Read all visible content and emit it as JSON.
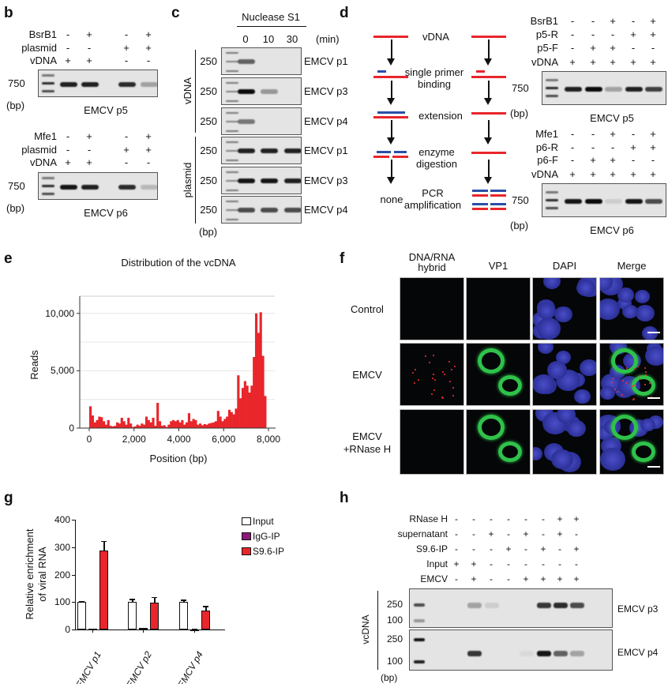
{
  "panel_labels": {
    "b": "b",
    "c": "c",
    "d": "d",
    "e": "e",
    "f": "f",
    "g": "g",
    "h": "h"
  },
  "panel_b": {
    "gels": [
      {
        "rows": [
          {
            "name": "BsrB1",
            "values": [
              "-",
              "+",
              "-",
              "+"
            ]
          },
          {
            "name": "plasmid",
            "values": [
              "-",
              "-",
              "+",
              "+"
            ]
          },
          {
            "name": "vDNA",
            "values": [
              "+",
              "+",
              "-",
              "-"
            ]
          }
        ],
        "marker": "750",
        "unit": "(bp)",
        "caption": "EMCV p5",
        "band_intensity": [
          0.9,
          0.9,
          0.85,
          0.3
        ]
      },
      {
        "rows": [
          {
            "name": "Mfe1",
            "values": [
              "-",
              "+",
              "-",
              "+"
            ]
          },
          {
            "name": "plasmid",
            "values": [
              "-",
              "-",
              "+",
              "+"
            ]
          },
          {
            "name": "vDNA",
            "values": [
              "+",
              "+",
              "-",
              "-"
            ]
          }
        ],
        "marker": "750",
        "unit": "(bp)",
        "caption": "EMCV p6",
        "band_intensity": [
          0.95,
          0.9,
          0.85,
          0.2
        ]
      }
    ]
  },
  "panel_c": {
    "treatment": "Nuclease S1",
    "times": [
      "0",
      "10",
      "30"
    ],
    "time_unit": "(min)",
    "groups": [
      "vDNA",
      "plasmid"
    ],
    "unit": "(bp)",
    "gels": [
      {
        "marker": "250",
        "caption": "EMCV p1",
        "band_intensity": [
          0.6,
          0,
          0
        ]
      },
      {
        "marker": "250",
        "caption": "EMCV p3",
        "band_intensity": [
          1,
          0.35,
          0
        ]
      },
      {
        "marker": "250",
        "caption": "EMCV p4",
        "band_intensity": [
          0.5,
          0,
          0
        ]
      },
      {
        "marker": "250",
        "caption": "EMCV p1",
        "band_intensity": [
          0.9,
          0.9,
          0.9
        ]
      },
      {
        "marker": "250",
        "caption": "EMCV p3",
        "band_intensity": [
          0.95,
          0.95,
          0.9
        ]
      },
      {
        "marker": "250",
        "caption": "EMCV p4",
        "band_intensity": [
          0.7,
          0.7,
          0.7
        ]
      }
    ]
  },
  "panel_d": {
    "diagram": {
      "steps": [
        "vDNA",
        "single primer",
        "binding",
        "extension",
        "enzyme",
        "digestion",
        "PCR",
        "amplification"
      ],
      "none": "none"
    },
    "colors": {
      "strand_red": "#e8262b",
      "strand_blue": "#2a4fa8"
    },
    "gels": [
      {
        "rows": [
          {
            "name": "BsrB1",
            "values": [
              "-",
              "-",
              "+",
              "-",
              "+"
            ]
          },
          {
            "name": "p5-R",
            "values": [
              "-",
              "-",
              "-",
              "+",
              "+"
            ]
          },
          {
            "name": "p5-F",
            "values": [
              "-",
              "+",
              "+",
              "-",
              "-"
            ]
          },
          {
            "name": "vDNA",
            "values": [
              "+",
              "+",
              "+",
              "+",
              "+"
            ]
          }
        ],
        "marker": "750",
        "unit": "(bp)",
        "caption": "EMCV p5",
        "band_intensity": [
          0.9,
          1,
          0.3,
          0.9,
          0.75
        ]
      },
      {
        "rows": [
          {
            "name": "Mfe1",
            "values": [
              "-",
              "-",
              "+",
              "-",
              "+"
            ]
          },
          {
            "name": "p6-R",
            "values": [
              "-",
              "-",
              "-",
              "+",
              "+"
            ]
          },
          {
            "name": "p6-F",
            "values": [
              "-",
              "+",
              "+",
              "-",
              "-"
            ]
          },
          {
            "name": "vDNA",
            "values": [
              "+",
              "+",
              "+",
              "+",
              "+"
            ]
          }
        ],
        "marker": "750",
        "unit": "(bp)",
        "caption": "EMCV p6",
        "band_intensity": [
          0.95,
          1,
          0.1,
          0.95,
          0.7
        ]
      }
    ]
  },
  "chart_data": [
    {
      "type": "bar",
      "title": "Distribution of the vcDNA",
      "xlabel": "Position (bp)",
      "ylabel": "Reads",
      "xlim": [
        0,
        8000
      ],
      "ylim": [
        0,
        11500
      ],
      "xticks": [
        "0",
        "2,000",
        "4,000",
        "6,000",
        "8,000"
      ],
      "yticks": [
        "0",
        "5,000",
        "10,000"
      ],
      "grid": true,
      "color": "#e8262b",
      "bin_width": 100,
      "bin_starts_at": 0,
      "values": [
        1900,
        1100,
        500,
        700,
        1000,
        950,
        600,
        300,
        700,
        200,
        150,
        200,
        500,
        400,
        900,
        600,
        300,
        900,
        400,
        100,
        150,
        300,
        200,
        400,
        300,
        1000,
        700,
        500,
        900,
        200,
        2200,
        600,
        200,
        250,
        100,
        300,
        600,
        700,
        600,
        700,
        500,
        700,
        300,
        500,
        1300,
        600,
        800,
        700,
        300,
        400,
        250,
        350,
        300,
        400,
        450,
        500,
        600,
        1500,
        1000,
        600,
        800,
        1000,
        1600,
        1400,
        1200,
        1700,
        4600,
        2600,
        3500,
        4100,
        3700,
        3100,
        3700,
        6200,
        10000,
        8300,
        10100,
        6300,
        2800
      ]
    },
    {
      "type": "bar",
      "ylabel": "Relative enrichment of viral RNA",
      "ylabel_lines": [
        "Relative enrichment",
        "of viral RNA"
      ],
      "ylim": [
        0,
        400
      ],
      "yticks": [
        "0",
        "100",
        "200",
        "300",
        "400"
      ],
      "categories": [
        "EMCV p1",
        "EMCV p2",
        "EMCV p4"
      ],
      "legend": "top-right",
      "series": [
        {
          "name": "Input",
          "color": "#ffffff",
          "values": [
            100,
            100,
            100
          ],
          "errors": [
            3,
            12,
            9
          ]
        },
        {
          "name": "IgG-IP",
          "color": "#8b1a7a",
          "values": [
            2,
            5,
            1
          ],
          "errors": [
            1,
            2,
            1
          ]
        },
        {
          "name": "S9.6-IP",
          "color": "#e8262b",
          "values": [
            288,
            98,
            70
          ],
          "errors": [
            35,
            20,
            16
          ]
        }
      ]
    }
  ],
  "panel_f": {
    "columns": [
      "DNA/RNA",
      "hybrid",
      "VP1",
      "DAPI",
      "Merge"
    ],
    "rows": [
      "Control",
      "EMCV",
      "EMCV",
      "+RNase H"
    ]
  },
  "panel_h": {
    "rows": [
      {
        "name": "RNase H",
        "values": [
          "-",
          "-",
          "-",
          "-",
          "-",
          "-",
          "+",
          "+"
        ]
      },
      {
        "name": "supernatant",
        "values": [
          "-",
          "-",
          "+",
          "-",
          "+",
          "-",
          "+",
          "-"
        ]
      },
      {
        "name": "S9.6-IP",
        "values": [
          "-",
          "-",
          "-",
          "+",
          "-",
          "+",
          "-",
          "+"
        ]
      },
      {
        "name": "Input",
        "values": [
          "+",
          "+",
          "-",
          "-",
          "-",
          "-",
          "-",
          "-"
        ]
      },
      {
        "name": "EMCV",
        "values": [
          "-",
          "+",
          "-",
          "-",
          "+",
          "+",
          "+",
          "+"
        ]
      }
    ],
    "group": "vcDNA",
    "unit": "(bp)",
    "gels": [
      {
        "markers": [
          "250",
          "100"
        ],
        "caption": "EMCV p3",
        "band_intensity": [
          0,
          0.3,
          0.1,
          0,
          0,
          0.8,
          0.85,
          0.7
        ]
      },
      {
        "markers": [
          "250",
          "100"
        ],
        "caption": "EMCV p4",
        "band_intensity": [
          0,
          0.8,
          0,
          0,
          0.05,
          0.95,
          0.6,
          0.3
        ]
      }
    ]
  }
}
